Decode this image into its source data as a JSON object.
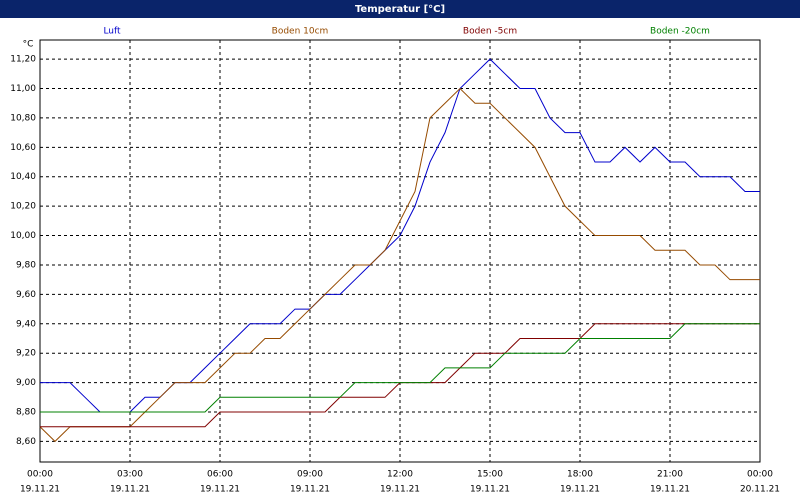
{
  "chart_data": {
    "type": "line",
    "title": "Temperatur [°C]",
    "y_unit": "°C",
    "x": [
      0,
      0.5,
      1,
      1.5,
      2,
      2.5,
      3,
      3.5,
      4,
      4.5,
      5,
      5.5,
      6,
      6.5,
      7,
      7.5,
      8,
      8.5,
      9,
      9.5,
      10,
      10.5,
      11,
      11.5,
      12,
      12.5,
      13,
      13.5,
      14,
      14.5,
      15,
      15.5,
      16,
      16.5,
      17,
      17.5,
      18,
      18.5,
      19,
      19.5,
      20,
      20.5,
      21,
      21.5,
      22,
      22.5,
      23,
      23.5,
      24
    ],
    "series": [
      {
        "name": "Luft",
        "color": "#0000cc",
        "values": [
          9.0,
          9.0,
          9.0,
          8.9,
          8.8,
          8.8,
          8.8,
          8.9,
          8.9,
          9.0,
          9.0,
          9.1,
          9.2,
          9.3,
          9.4,
          9.4,
          9.4,
          9.5,
          9.5,
          9.6,
          9.6,
          9.7,
          9.8,
          9.9,
          10.0,
          10.2,
          10.5,
          10.7,
          11.0,
          11.1,
          11.2,
          11.1,
          11.0,
          11.0,
          10.8,
          10.7,
          10.7,
          10.5,
          10.5,
          10.6,
          10.5,
          10.6,
          10.5,
          10.5,
          10.4,
          10.4,
          10.4,
          10.3,
          10.3
        ]
      },
      {
        "name": "Boden 10cm",
        "color": "#964b00",
        "values": [
          8.7,
          8.6,
          8.7,
          8.7,
          8.7,
          8.7,
          8.7,
          8.8,
          8.9,
          9.0,
          9.0,
          9.0,
          9.1,
          9.2,
          9.2,
          9.3,
          9.3,
          9.4,
          9.5,
          9.6,
          9.7,
          9.8,
          9.8,
          9.9,
          10.1,
          10.3,
          10.8,
          10.9,
          11.0,
          10.9,
          10.9,
          10.8,
          10.7,
          10.6,
          10.4,
          10.2,
          10.1,
          10.0,
          10.0,
          10.0,
          10.0,
          9.9,
          9.9,
          9.9,
          9.8,
          9.8,
          9.7,
          9.7,
          9.7
        ]
      },
      {
        "name": "Boden -5cm",
        "color": "#800000",
        "values": [
          8.7,
          8.7,
          8.7,
          8.7,
          8.7,
          8.7,
          8.7,
          8.7,
          8.7,
          8.7,
          8.7,
          8.7,
          8.8,
          8.8,
          8.8,
          8.8,
          8.8,
          8.8,
          8.8,
          8.8,
          8.9,
          8.9,
          8.9,
          8.9,
          9.0,
          9.0,
          9.0,
          9.0,
          9.1,
          9.2,
          9.2,
          9.2,
          9.3,
          9.3,
          9.3,
          9.3,
          9.3,
          9.4,
          9.4,
          9.4,
          9.4,
          9.4,
          9.4,
          9.4,
          9.4,
          9.4,
          9.4,
          9.4,
          9.4
        ]
      },
      {
        "name": "Boden -20cm",
        "color": "#008000",
        "values": [
          8.8,
          8.8,
          8.8,
          8.8,
          8.8,
          8.8,
          8.8,
          8.8,
          8.8,
          8.8,
          8.8,
          8.8,
          8.9,
          8.9,
          8.9,
          8.9,
          8.9,
          8.9,
          8.9,
          8.9,
          8.9,
          9.0,
          9.0,
          9.0,
          9.0,
          9.0,
          9.0,
          9.1,
          9.1,
          9.1,
          9.1,
          9.2,
          9.2,
          9.2,
          9.2,
          9.2,
          9.3,
          9.3,
          9.3,
          9.3,
          9.3,
          9.3,
          9.3,
          9.4,
          9.4,
          9.4,
          9.4,
          9.4,
          9.4
        ]
      }
    ],
    "xlim": [
      0,
      24
    ],
    "xticks": [
      {
        "value": 0,
        "label": "00:00"
      },
      {
        "value": 3,
        "label": "03:00"
      },
      {
        "value": 6,
        "label": "06:00"
      },
      {
        "value": 9,
        "label": "09:00"
      },
      {
        "value": 12,
        "label": "12:00"
      },
      {
        "value": 15,
        "label": "15:00"
      },
      {
        "value": 18,
        "label": "18:00"
      },
      {
        "value": 21,
        "label": "21:00"
      },
      {
        "value": 24,
        "label": "00:00"
      }
    ],
    "xtick_dates": [
      "19.11.21",
      "19.11.21",
      "19.11.21",
      "19.11.21",
      "19.11.21",
      "19.11.21",
      "19.11.21",
      "19.11.21",
      "20.11.21"
    ],
    "ylim": [
      8.46,
      11.33
    ],
    "yticks": [
      {
        "value": 8.6,
        "label": "8,60"
      },
      {
        "value": 8.8,
        "label": "8,80"
      },
      {
        "value": 9.0,
        "label": "9,00"
      },
      {
        "value": 9.2,
        "label": "9,20"
      },
      {
        "value": 9.4,
        "label": "9,40"
      },
      {
        "value": 9.6,
        "label": "9,60"
      },
      {
        "value": 9.8,
        "label": "9,80"
      },
      {
        "value": 10.0,
        "label": "10,00"
      },
      {
        "value": 10.2,
        "label": "10,20"
      },
      {
        "value": 10.4,
        "label": "10,40"
      },
      {
        "value": 10.6,
        "label": "10,60"
      },
      {
        "value": 10.8,
        "label": "10,80"
      },
      {
        "value": 11.0,
        "label": "11,00"
      },
      {
        "value": 11.2,
        "label": "11,20"
      }
    ],
    "grid": true
  }
}
